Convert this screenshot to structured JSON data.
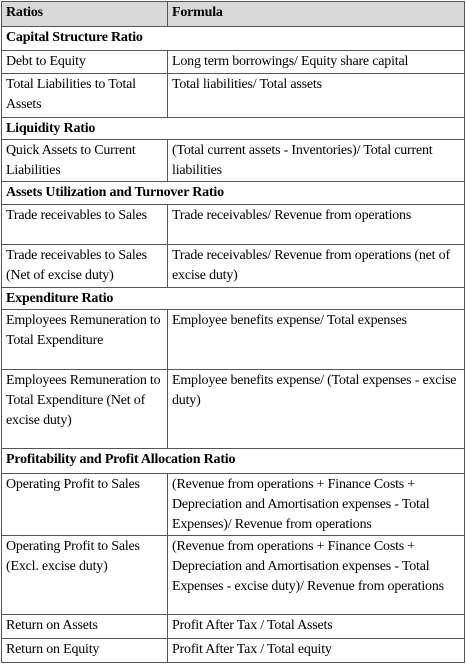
{
  "header": [
    "Ratios",
    "Formula"
  ],
  "sections": [
    {
      "title": "Capital Structure Ratio",
      "rows": [
        [
          "Debt to Equity",
          "Long term borrowings/ Equity share capital"
        ],
        [
          "Total Liabilities to Total Assets",
          "Total liabilities/ Total assets"
        ]
      ]
    },
    {
      "title": "Liquidity Ratio",
      "rows": [
        [
          "Quick Assets to Current Liabilities",
          "(Total current assets - Inventories)/ Total current liabilities"
        ]
      ]
    },
    {
      "title": "Assets Utilization and Turnover Ratio",
      "rows": [
        [
          "Trade receivables to Sales",
          "Trade receivables/ Revenue from operations"
        ],
        [
          "Trade receivables to Sales (Net of excise duty)",
          "Trade receivables/ Revenue from operations (net of excise duty)"
        ]
      ]
    },
    {
      "title": "Expenditure Ratio",
      "rows": [
        [
          "Employees Remuneration to Total Expenditure",
          "Employee benefits expense/ Total expenses"
        ],
        [
          "Employees Remuneration to Total Expenditure (Net of excise duty)",
          "Employee benefits expense/ (Total expenses - excise duty)"
        ]
      ]
    },
    {
      "title": "Profitability and Profit Allocation Ratio",
      "rows": [
        [
          "Operating Profit to Sales",
          "(Revenue from operations + Finance Costs + Depreciation and Amortisation expenses - Total Expenses)/ Revenue from operations"
        ],
        [
          "Operating Profit to Sales (Excl. excise duty)",
          "(Revenue from operations + Finance Costs + Depreciation and Amortisation expenses - Total Expenses - excise duty)/ Revenue from operations"
        ],
        [
          "Return on Assets",
          "Profit After Tax / Total Assets"
        ],
        [
          "Return on Equity",
          "Profit After Tax / Total equity"
        ]
      ]
    }
  ]
}
